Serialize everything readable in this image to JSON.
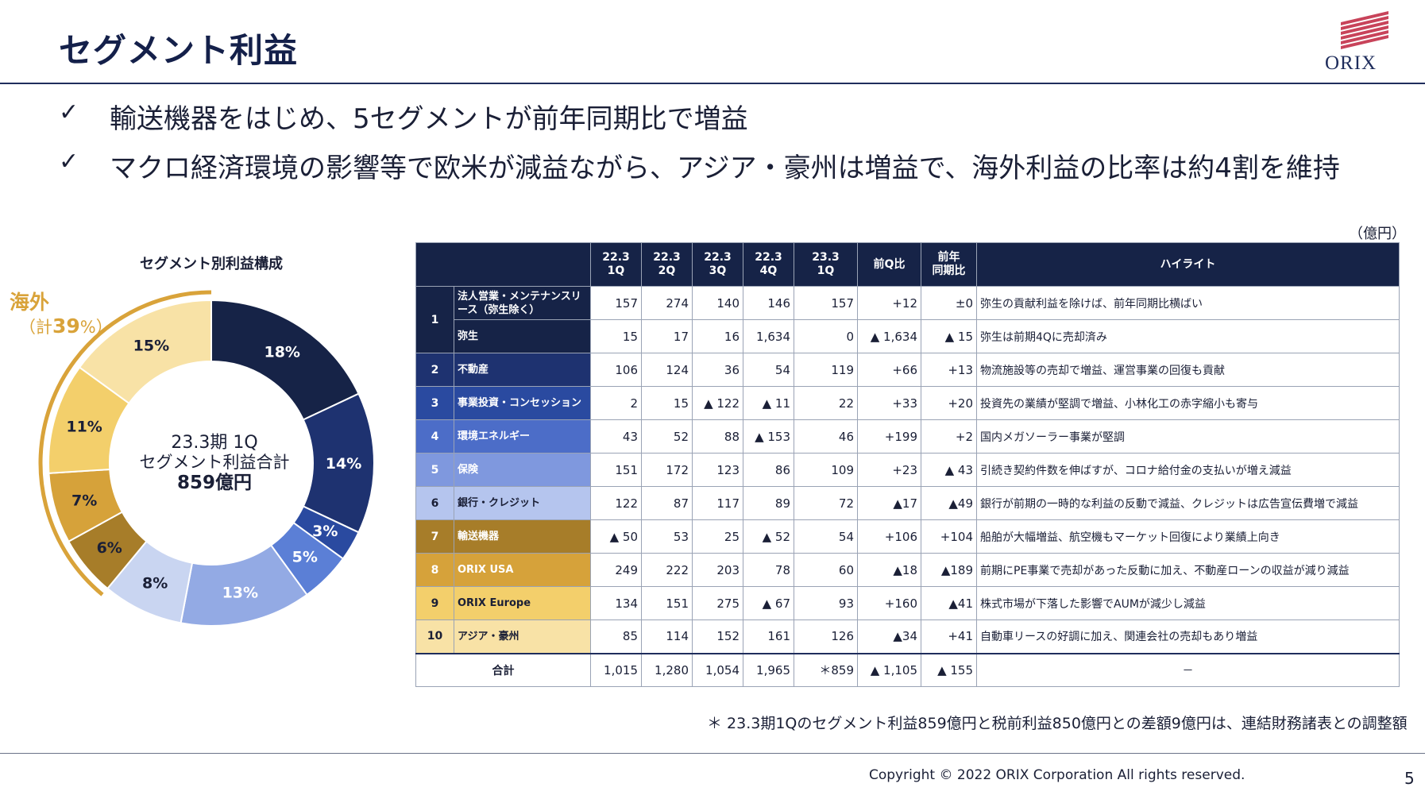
{
  "title": "セグメント利益",
  "logo_text": "ORIX",
  "bullets": [
    {
      "mark": "✓",
      "text": "輸送機器をはじめ、5セグメントが前年同期比で増益"
    },
    {
      "mark": "✓",
      "text": "マクロ経済環境の影響等で欧米が減益ながら、アジア・豪州は増益で、海外利益の比率は約4割を維持"
    }
  ],
  "unit": "（億円）",
  "donut": {
    "title": "セグメント別利益構成",
    "overseas_label": "海外",
    "overseas_sub_prefix": "（計",
    "overseas_sub_value": "39",
    "overseas_sub_suffix": "%）",
    "center_line1": "23.3期 1Q",
    "center_line2": "セグメント利益合計",
    "center_line3": "859億円",
    "slices": [
      {
        "label": "18%",
        "value": 18,
        "color": "#162347",
        "text_color": "#ffffff"
      },
      {
        "label": "14%",
        "value": 14,
        "color": "#1e3270",
        "text_color": "#ffffff"
      },
      {
        "label": "3%",
        "value": 3,
        "color": "#2a4aa0",
        "text_color": "#ffffff"
      },
      {
        "label": "5%",
        "value": 5,
        "color": "#5b7fd6",
        "text_color": "#ffffff"
      },
      {
        "label": "13%",
        "value": 13,
        "color": "#93aae4",
        "text_color": "#ffffff"
      },
      {
        "label": "8%",
        "value": 8,
        "color": "#c9d5f1",
        "text_color": "#1a1f36"
      },
      {
        "label": "6%",
        "value": 6,
        "color": "#a77d29",
        "text_color": "#1a1f36"
      },
      {
        "label": "7%",
        "value": 7,
        "color": "#d6a23a",
        "text_color": "#1a1f36"
      },
      {
        "label": "11%",
        "value": 11,
        "color": "#f3cf6b",
        "text_color": "#1a1f36"
      },
      {
        "label": "15%",
        "value": 15,
        "color": "#f8e2a6",
        "text_color": "#1a1f36"
      }
    ]
  },
  "table": {
    "headers": {
      "h1": "22.3",
      "h1b": "1Q",
      "h2": "22.3",
      "h2b": "2Q",
      "h3": "22.3",
      "h3b": "3Q",
      "h4": "22.3",
      "h4b": "4Q",
      "h5": "23.3",
      "h5b": "1Q",
      "h6": "前Q比",
      "h7": "前年",
      "h7b": "同期比",
      "h8": "ハイライト"
    },
    "rows": [
      {
        "no": "1",
        "seg": "法人営業・メンテナンスリース（弥生除く）",
        "v": [
          "157",
          "274",
          "140",
          "146",
          "157",
          "+12",
          "±0"
        ],
        "hl": "弥生の貢献利益を除けば、前年同期比横ばい"
      },
      {
        "seg": "弥生",
        "v": [
          "15",
          "17",
          "16",
          "1,634",
          "0",
          "▲ 1,634",
          "▲ 15"
        ],
        "hl": "弥生は前期4Qに売却済み"
      },
      {
        "no": "2",
        "seg": "不動産",
        "v": [
          "106",
          "124",
          "36",
          "54",
          "119",
          "+66",
          "+13"
        ],
        "hl": "物流施設等の売却で増益、運営事業の回復も貢献"
      },
      {
        "no": "3",
        "seg": "事業投資・コンセッション",
        "v": [
          "2",
          "15",
          "▲ 122",
          "▲ 11",
          "22",
          "+33",
          "+20"
        ],
        "hl": "投資先の業績が堅調で増益、小林化工の赤字縮小も寄与"
      },
      {
        "no": "4",
        "seg": "環境エネルギー",
        "v": [
          "43",
          "52",
          "88",
          "▲ 153",
          "46",
          "+199",
          "+2"
        ],
        "hl": "国内メガソーラー事業が堅調"
      },
      {
        "no": "5",
        "seg": "保険",
        "v": [
          "151",
          "172",
          "123",
          "86",
          "109",
          "+23",
          "▲ 43"
        ],
        "hl": "引続き契約件数を伸ばすが、コロナ給付金の支払いが増え減益"
      },
      {
        "no": "6",
        "seg": "銀行・クレジット",
        "v": [
          "122",
          "87",
          "117",
          "89",
          "72",
          "▲17",
          "▲49"
        ],
        "hl": "銀行が前期の一時的な利益の反動で減益、クレジットは広告宣伝費増で減益"
      },
      {
        "no": "7",
        "seg": "輸送機器",
        "v": [
          "▲ 50",
          "53",
          "25",
          "▲ 52",
          "54",
          "+106",
          "+104"
        ],
        "hl": "船舶が大幅増益、航空機もマーケット回復により業績上向き"
      },
      {
        "no": "8",
        "seg": "ORIX USA",
        "v": [
          "249",
          "222",
          "203",
          "78",
          "60",
          "▲18",
          "▲189"
        ],
        "hl": "前期にPE事業で売却があった反動に加え、不動産ローンの収益が減り減益"
      },
      {
        "no": "9",
        "seg": "ORIX Europe",
        "v": [
          "134",
          "151",
          "275",
          "▲ 67",
          "93",
          "+160",
          "▲41"
        ],
        "hl": "株式市場が下落した影響でAUMが減少し減益"
      },
      {
        "no": "10",
        "seg": "アジア・豪州",
        "v": [
          "85",
          "114",
          "152",
          "161",
          "126",
          "▲34",
          "+41"
        ],
        "hl": "自動車リースの好調に加え、関連会社の売却もあり増益"
      },
      {
        "seg": "合計",
        "v": [
          "1,015",
          "1,280",
          "1,054",
          "1,965",
          "＊859",
          "▲ 1,105",
          "▲ 155"
        ],
        "hl": "－"
      }
    ],
    "row_colors": {
      "g1": "#162347",
      "g2": "#1e3270",
      "g3": "#2a4aa0",
      "g4": "#4c6dc8",
      "g5": "#7f98de",
      "g6": "#b5c5ee",
      "g7": "#a77d29",
      "g8": "#d6a23a",
      "g9": "#f3cf6b",
      "g10": "#f8e2a6"
    }
  },
  "footnote": "＊ 23.3期1Qのセグメント利益859億円と税前利益850億円との差額9億円は、連結財務諸表との調整額",
  "copyright": "Copyright © 2022 ORIX Corporation  All rights reserved.",
  "page_number": "5"
}
